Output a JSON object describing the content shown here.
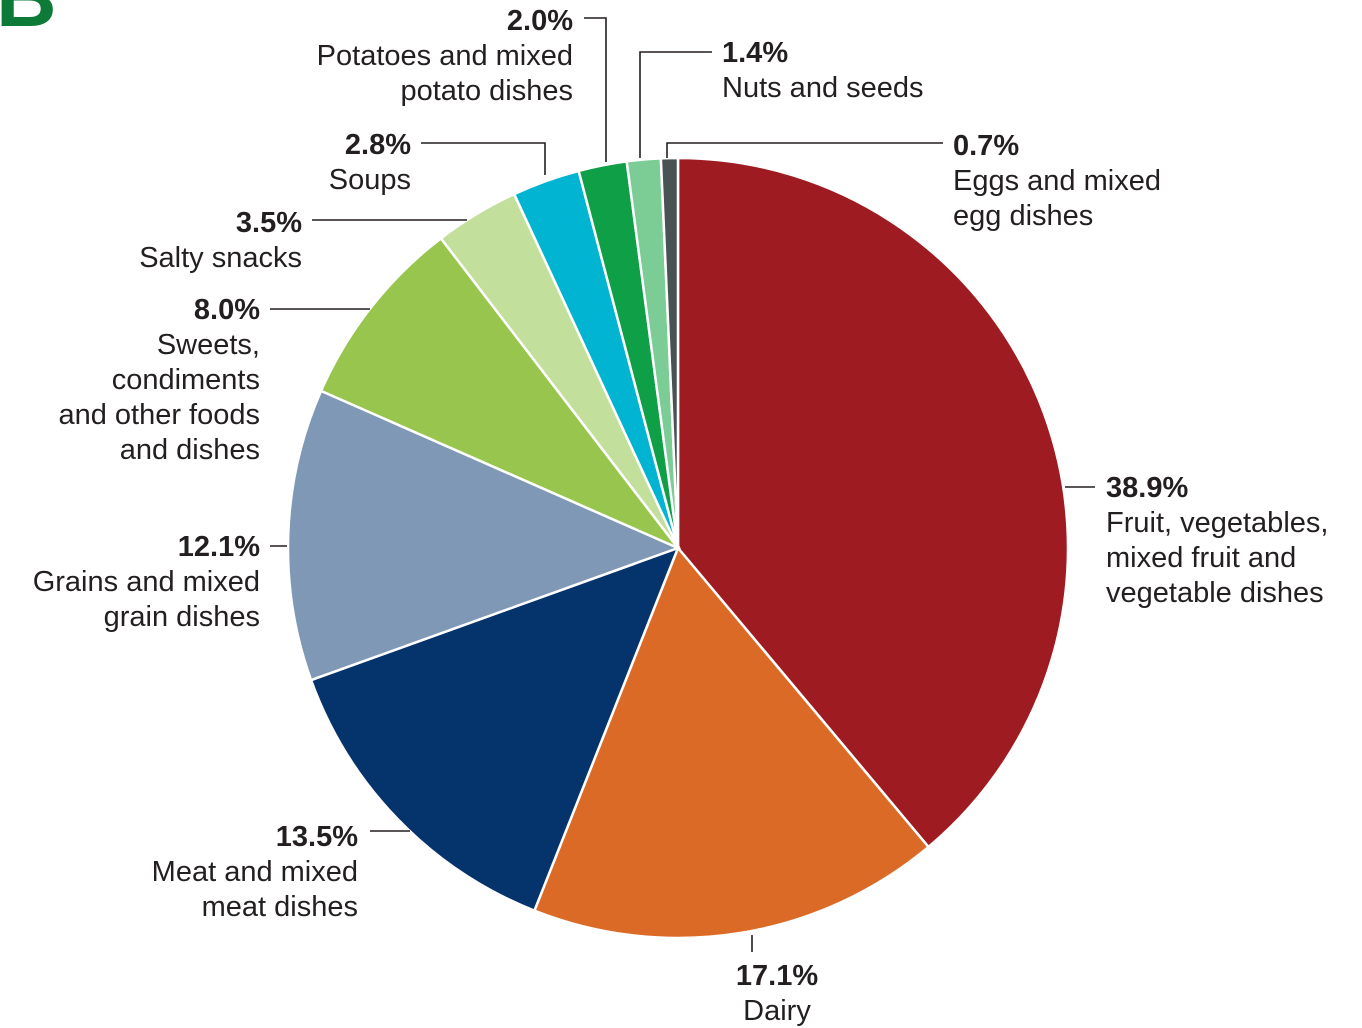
{
  "panel_label": "B",
  "chart_data": {
    "type": "pie",
    "slices": [
      {
        "label_lines": [
          "Fruit, vegetables,",
          "mixed fruit and",
          "vegetable dishes"
        ],
        "value": 38.9,
        "value_label": "38.9%",
        "color": "#9e1b21"
      },
      {
        "label_lines": [
          "Dairy"
        ],
        "value": 17.1,
        "value_label": "17.1%",
        "color": "#dc6a27"
      },
      {
        "label_lines": [
          "Meat and mixed",
          "meat dishes"
        ],
        "value": 13.5,
        "value_label": "13.5%",
        "color": "#05336b"
      },
      {
        "label_lines": [
          "Grains and mixed",
          "grain dishes"
        ],
        "value": 12.1,
        "value_label": "12.1%",
        "color": "#7f98b6"
      },
      {
        "label_lines": [
          "Sweets,",
          "condiments",
          "and other foods",
          "and dishes"
        ],
        "value": 8.0,
        "value_label": "8.0%",
        "color": "#97c54e"
      },
      {
        "label_lines": [
          "Salty snacks"
        ],
        "value": 3.5,
        "value_label": "3.5%",
        "color": "#c3df9c"
      },
      {
        "label_lines": [
          "Soups"
        ],
        "value": 2.8,
        "value_label": "2.8%",
        "color": "#00b4d2"
      },
      {
        "label_lines": [
          "Potatoes and mixed",
          "potato dishes"
        ],
        "value": 2.0,
        "value_label": "2.0%",
        "color": "#0f9f47"
      },
      {
        "label_lines": [
          "Nuts and seeds"
        ],
        "value": 1.4,
        "value_label": "1.4%",
        "color": "#7ccc96"
      },
      {
        "label_lines": [
          "Eggs and mixed",
          "egg dishes"
        ],
        "value": 0.7,
        "value_label": "0.7%",
        "color": "#4a5354"
      }
    ],
    "start": "12 o'clock",
    "direction": "clockwise",
    "legend": "none (leader-line labels)"
  }
}
